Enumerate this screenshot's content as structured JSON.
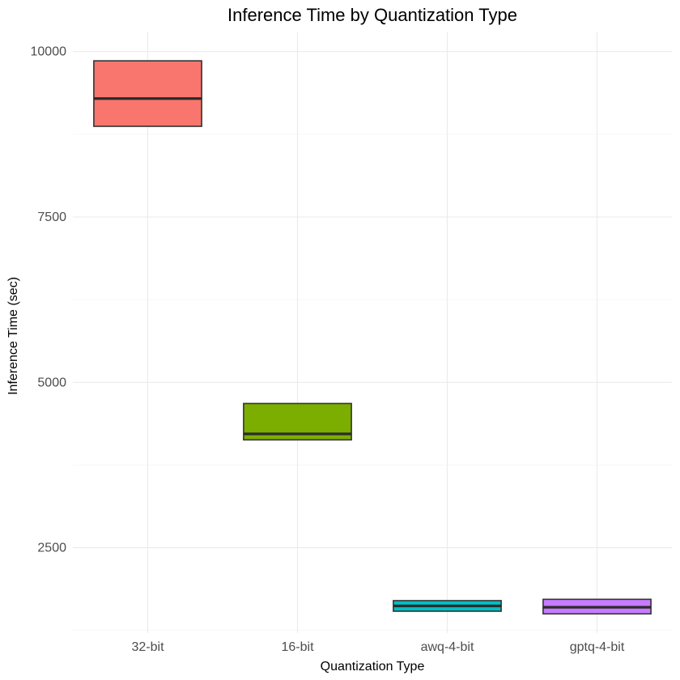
{
  "chart_data": {
    "type": "box",
    "title": "Inference Time by Quantization Type",
    "xlabel": "Quantization Type",
    "ylabel": "Inference Time (sec)",
    "categories": [
      "32-bit",
      "16-bit",
      "awq-4-bit",
      "gptq-4-bit"
    ],
    "boxes": [
      {
        "category": "32-bit",
        "q1": 8870,
        "median": 9290,
        "q3": 9860,
        "color": "#F8766D"
      },
      {
        "category": "16-bit",
        "q1": 4130,
        "median": 4220,
        "q3": 4680,
        "color": "#7CAE00"
      },
      {
        "category": "awq-4-bit",
        "q1": 1540,
        "median": 1620,
        "q3": 1700,
        "color": "#00BFC4"
      },
      {
        "category": "gptq-4-bit",
        "q1": 1500,
        "median": 1600,
        "q3": 1720,
        "color": "#C77CFF"
      }
    ],
    "y_ticks": [
      2500,
      5000,
      7500,
      10000
    ],
    "y_tick_labels": [
      "2500",
      "5000",
      "7500",
      "10000"
    ],
    "ylim": [
      1210,
      10290
    ],
    "grid": true,
    "legend": "none"
  }
}
